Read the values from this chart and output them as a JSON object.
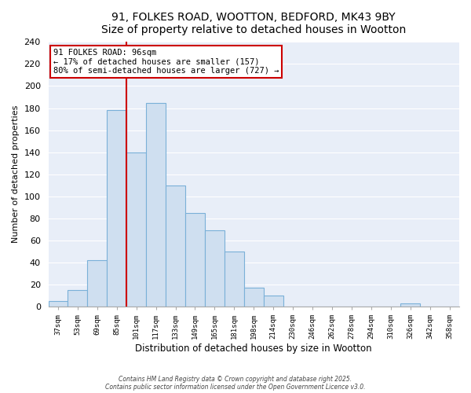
{
  "title": "91, FOLKES ROAD, WOOTTON, BEDFORD, MK43 9BY",
  "subtitle": "Size of property relative to detached houses in Wootton",
  "xlabel": "Distribution of detached houses by size in Wootton",
  "ylabel": "Number of detached properties",
  "bin_labels": [
    "37sqm",
    "53sqm",
    "69sqm",
    "85sqm",
    "101sqm",
    "117sqm",
    "133sqm",
    "149sqm",
    "165sqm",
    "181sqm",
    "198sqm",
    "214sqm",
    "230sqm",
    "246sqm",
    "262sqm",
    "278sqm",
    "294sqm",
    "310sqm",
    "326sqm",
    "342sqm",
    "358sqm"
  ],
  "bar_values": [
    5,
    15,
    42,
    178,
    140,
    185,
    110,
    85,
    69,
    50,
    17,
    10,
    0,
    0,
    0,
    0,
    0,
    0,
    3,
    0,
    0
  ],
  "bar_color": "#cfdff0",
  "bar_edge_color": "#7ab0d8",
  "vline_color": "#cc0000",
  "annotation_title": "91 FOLKES ROAD: 96sqm",
  "annotation_line1": "← 17% of detached houses are smaller (157)",
  "annotation_line2": "80% of semi-detached houses are larger (727) →",
  "box_edge_color": "#cc0000",
  "ylim": [
    0,
    240
  ],
  "yticks": [
    0,
    20,
    40,
    60,
    80,
    100,
    120,
    140,
    160,
    180,
    200,
    220,
    240
  ],
  "footnote1": "Contains HM Land Registry data © Crown copyright and database right 2025.",
  "footnote2": "Contains public sector information licensed under the Open Government Licence v3.0.",
  "bg_color": "#ffffff",
  "plot_bg_color": "#e8eef8",
  "grid_color": "#ffffff"
}
